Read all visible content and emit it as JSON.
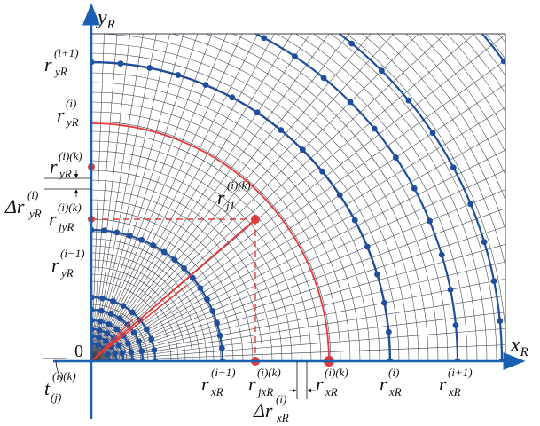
{
  "colors": {
    "axis": "#1a5fb4",
    "ring": "#1f4e9c",
    "grid": "#3a3f4a",
    "highlight": "#e23b3b",
    "text": "#111111"
  },
  "axes": {
    "x_name": "x",
    "x_sub": "R",
    "y_name": "y",
    "y_sub": "R",
    "origin": "0"
  },
  "labels": {
    "ry_i1": {
      "main": "r",
      "sup": "(i+1)",
      "sub": "yR"
    },
    "ry_i": {
      "main": "r",
      "sup": "(i)",
      "sub": "yR"
    },
    "ry_ik": {
      "main": "r",
      "sup": "(i)(k)",
      "sub": "yR"
    },
    "dry_i": {
      "main": "Δr",
      "sup": "(i)",
      "sub": "yR"
    },
    "rjy_ik": {
      "main": "r",
      "sup": "(i)(k)",
      "sub": "jyR"
    },
    "ry_im1": {
      "main": "r",
      "sup": "(i−1)",
      "sub": "yR"
    },
    "rj1_ik": {
      "main": "r",
      "sup": "(i)(k)",
      "sub": "j1"
    },
    "t_ikj": {
      "main": "t",
      "sup": "(i)(k)",
      "sub": "(j)"
    },
    "rx_im1": {
      "main": "r",
      "sup": "(i−1)",
      "sub": "xR"
    },
    "rjx_ik": {
      "main": "r",
      "sup": "(i)(k)",
      "sub": "jxR"
    },
    "drx_i": {
      "main": "Δr",
      "sup": "(i)",
      "sub": "xR"
    },
    "rx_ik": {
      "main": "r",
      "sup": "(i)(k)",
      "sub": "xR"
    },
    "rx_i": {
      "main": "r",
      "sup": "(i)",
      "sub": "xR"
    },
    "rx_i1": {
      "main": "r",
      "sup": "(i+1)",
      "sub": "xR"
    }
  }
}
